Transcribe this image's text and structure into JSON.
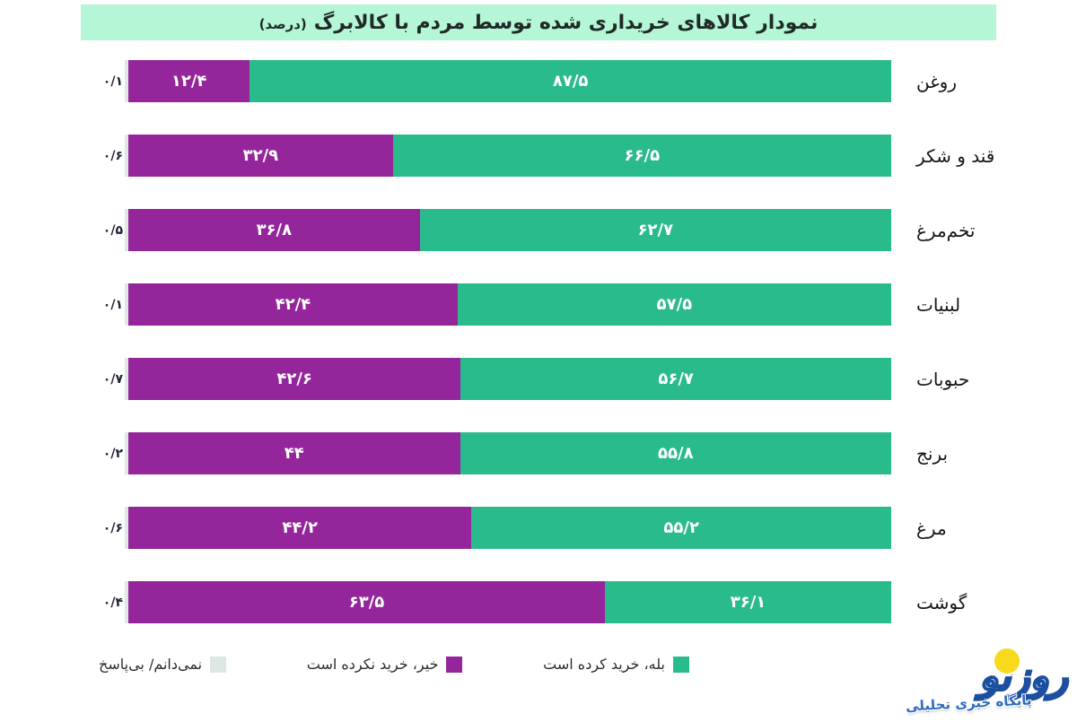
{
  "title": {
    "text": "نمودار کالاهای خریداری شده توسط مردم با کالابرگ",
    "unit": "(درصد)"
  },
  "chart_data": {
    "type": "bar",
    "stacked": true,
    "orientation": "horizontal",
    "direction": "rtl",
    "unit": "percent",
    "xlim": [
      0,
      100
    ],
    "grid": false,
    "legend_position": "bottom",
    "categories": [
      "روغن",
      "قند و شکر",
      "تخم‌مرغ",
      "لبنیات",
      "حبوبات",
      "برنج",
      "مرغ",
      "گوشت"
    ],
    "series": [
      {
        "name": "بله، خرید کرده است",
        "color": "#2abb8d",
        "values": [
          87.5,
          66.5,
          62.7,
          57.5,
          56.7,
          55.8,
          55.2,
          36.1
        ],
        "labels": [
          "۸۷/۵",
          "۶۶/۵",
          "۶۲/۷",
          "۵۷/۵",
          "۵۶/۷",
          "۵۵/۸",
          "۵۵/۲",
          "۳۶/۱"
        ]
      },
      {
        "name": "خیر، خرید نکرده است",
        "color": "#94259a",
        "values": [
          12.4,
          32.9,
          36.8,
          42.4,
          42.6,
          44,
          44.2,
          63.5
        ],
        "labels": [
          "۱۲/۴",
          "۳۲/۹",
          "۳۶/۸",
          "۴۲/۴",
          "۴۲/۶",
          "۴۴",
          "۴۴/۲",
          "۶۳/۵"
        ]
      },
      {
        "name": "نمی‌دانم/ بی‌پاسخ",
        "color": "#dee8e3",
        "values": [
          0.1,
          0.6,
          0.5,
          0.1,
          0.7,
          0.2,
          0.6,
          0.4
        ],
        "labels": [
          "۰/۱",
          "۰/۶",
          "۰/۵",
          "۰/۱",
          "۰/۷",
          "۰/۲",
          "۰/۶",
          "۰/۴"
        ]
      }
    ]
  },
  "legend": {
    "items": [
      {
        "label": "بله، خرید کرده است",
        "color": "#2abb8d"
      },
      {
        "label": "خیر، خرید نکرده است",
        "color": "#94259a"
      },
      {
        "label": "نمی‌دانم/ بی‌پاسخ",
        "color": "#dee8e3"
      }
    ]
  },
  "watermark": {
    "brand": "روزنو",
    "tagline": "پایگاه خبری تحلیلی"
  }
}
